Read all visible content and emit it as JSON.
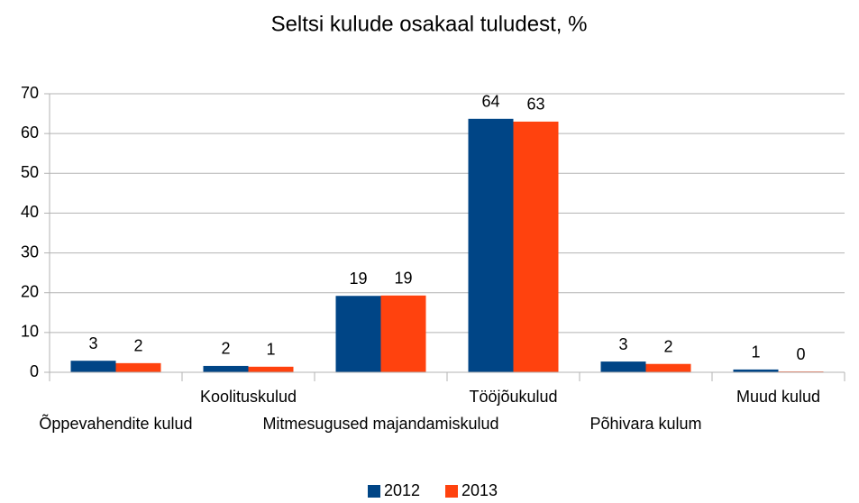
{
  "chart_data": {
    "type": "bar",
    "title": "Seltsi kulude osakaal tuludest, %",
    "categories": [
      "Õppevahendite kulud",
      "Koolituskulud",
      "Mitmesugused majandamiskulud",
      "Tööjõukulud",
      "Põhivara kulum",
      "Muud kulud"
    ],
    "series": [
      {
        "name": "2012",
        "color": "#004586",
        "values": [
          2.9,
          1.6,
          19.2,
          63.7,
          2.7,
          0.7
        ],
        "value_labels": [
          "3",
          "2",
          "19",
          "64",
          "3",
          "1"
        ]
      },
      {
        "name": "2013",
        "color": "#ff420e",
        "values": [
          2.3,
          1.4,
          19.3,
          63.0,
          2.1,
          0.2
        ],
        "value_labels": [
          "2",
          "1",
          "19",
          "63",
          "2",
          "0"
        ]
      }
    ],
    "ylim": [
      0,
      70
    ],
    "yticks": [
      0,
      10,
      20,
      30,
      40,
      50,
      60,
      70
    ],
    "grid": true,
    "legend": "bottom"
  }
}
